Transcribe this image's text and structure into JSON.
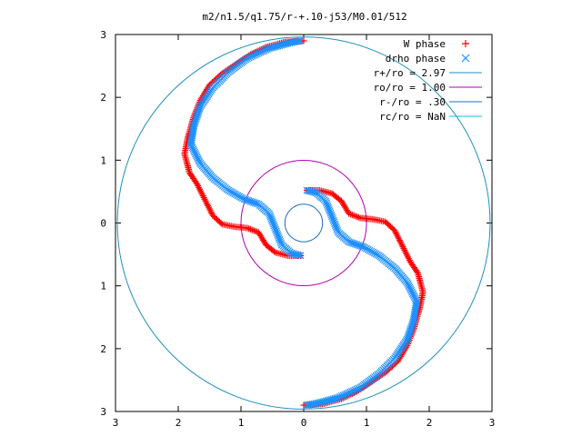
{
  "chart_data": {
    "type": "scatter",
    "title": "m2/n1.5/q1.75/r-+.10-j53/M0.01/512",
    "xlim": [
      -3,
      3
    ],
    "ylim": [
      -3,
      3
    ],
    "x_ticks": [
      -3,
      -2,
      -1,
      0,
      1,
      2,
      3
    ],
    "y_ticks": [
      -3,
      -2,
      -1,
      0,
      1,
      2,
      3
    ],
    "x_tick_labels": [
      "3",
      "2",
      "1",
      "0",
      "1",
      "2",
      "3"
    ],
    "y_tick_labels": [
      "3",
      "2",
      "1",
      "0",
      "1",
      "2",
      "3"
    ],
    "grid": false,
    "legend_position": "top-right",
    "legend": [
      {
        "label": "W phase",
        "kind": "marker",
        "marker": "+",
        "color": "#ff0000"
      },
      {
        "label": "drho phase",
        "kind": "marker",
        "marker": "x",
        "color": "#1e90ff"
      },
      {
        "label": "r+/ro = 2.97",
        "kind": "line",
        "color": "#1f8fbf"
      },
      {
        "label": "ro/ro = 1.00",
        "kind": "line",
        "color": "#b000b0"
      },
      {
        "label": "r-/ro = .30",
        "kind": "line",
        "color": "#1f6fbf"
      },
      {
        "label": "rc/ro = NaN",
        "kind": "line",
        "color": "#00c8d0"
      }
    ],
    "circles": [
      {
        "name": "r+",
        "r": 2.97,
        "color": "#1f8fbf"
      },
      {
        "name": "ro",
        "r": 1.0,
        "color": "#b000b0"
      },
      {
        "name": "r-",
        "r": 0.3,
        "color": "#1f6fbf"
      }
    ],
    "series": [
      {
        "name": "W phase",
        "color": "#ff0000",
        "marker": "+",
        "points": [
          [
            0.05,
            0.52
          ],
          [
            0.25,
            0.52
          ],
          [
            0.45,
            0.47
          ],
          [
            0.6,
            0.35
          ],
          [
            0.72,
            0.15
          ],
          [
            0.9,
            0.08
          ],
          [
            1.1,
            0.06
          ],
          [
            1.3,
            0.02
          ],
          [
            1.45,
            -0.12
          ],
          [
            1.58,
            -0.38
          ],
          [
            1.7,
            -0.62
          ],
          [
            1.82,
            -0.8
          ],
          [
            1.9,
            -1.1
          ],
          [
            1.85,
            -1.35
          ],
          [
            1.75,
            -1.7
          ],
          [
            1.65,
            -1.95
          ],
          [
            1.5,
            -2.2
          ],
          [
            1.3,
            -2.38
          ],
          [
            1.05,
            -2.55
          ],
          [
            0.85,
            -2.68
          ],
          [
            0.6,
            -2.8
          ],
          [
            0.3,
            -2.88
          ],
          [
            0.0,
            -2.9
          ]
        ]
      },
      {
        "name": "drho phase",
        "color": "#1e90ff",
        "marker": "x",
        "points": [
          [
            0.05,
            0.52
          ],
          [
            0.2,
            0.48
          ],
          [
            0.35,
            0.35
          ],
          [
            0.45,
            0.1
          ],
          [
            0.55,
            -0.15
          ],
          [
            0.72,
            -0.3
          ],
          [
            0.95,
            -0.38
          ],
          [
            1.2,
            -0.52
          ],
          [
            1.45,
            -0.72
          ],
          [
            1.65,
            -0.95
          ],
          [
            1.8,
            -1.25
          ],
          [
            1.75,
            -1.55
          ],
          [
            1.65,
            -1.85
          ],
          [
            1.45,
            -2.15
          ],
          [
            1.2,
            -2.4
          ],
          [
            0.9,
            -2.62
          ],
          [
            0.55,
            -2.78
          ],
          [
            0.25,
            -2.86
          ],
          [
            0.05,
            -2.9
          ]
        ]
      }
    ]
  }
}
